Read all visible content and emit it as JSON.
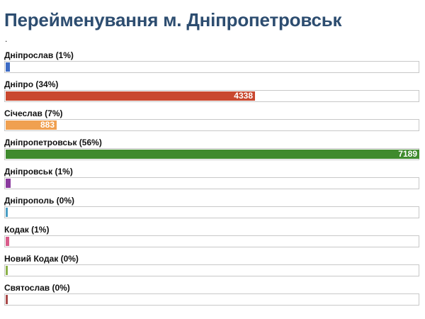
{
  "chart_data": {
    "type": "bar",
    "orientation": "horizontal",
    "title": "Перейменування м. Дніпропетровськ",
    "subtitle": ".",
    "xlabel": "",
    "ylabel": "",
    "xlim": [
      0,
      7189
    ],
    "grid": false,
    "categories": [
      "Дніпрослав (1%)",
      "Дніпро (34%)",
      "Січеслав (7%)",
      "Дніпропетровськ (56%)",
      "Дніпровськ (1%)",
      "Дніпрополь (0%)",
      "Кодак (1%)",
      "Новий Кодак (0%)",
      "Святослав (0%)"
    ],
    "values": [
      70,
      4338,
      883,
      7189,
      90,
      40,
      60,
      25,
      25
    ],
    "value_labels": [
      "",
      "4338",
      "883",
      "7189",
      "",
      "",
      "",
      "",
      ""
    ],
    "colors": [
      "#3d6bc4",
      "#c9482f",
      "#f0a050",
      "#3f8a2d",
      "#8a3a9e",
      "#4a9ec4",
      "#d95c8a",
      "#8cb24a",
      "#a94a4a"
    ]
  }
}
